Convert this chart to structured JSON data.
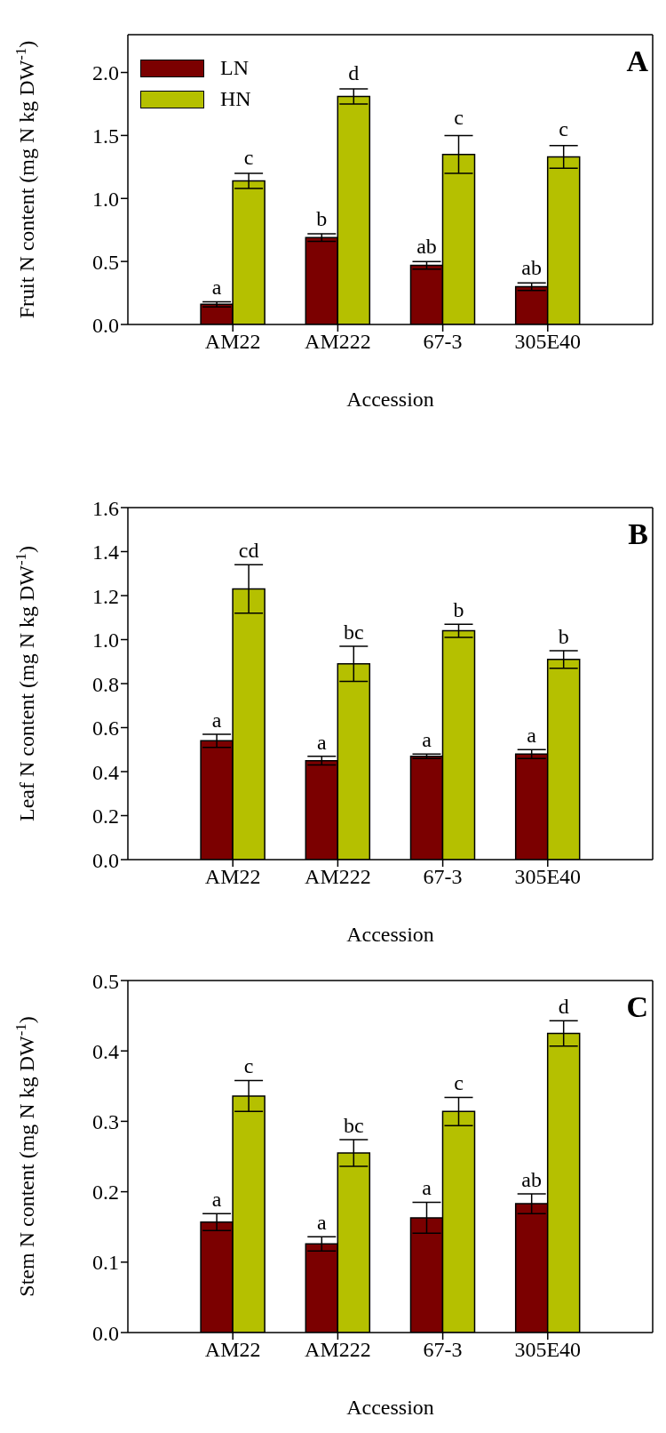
{
  "chart_data": [
    {
      "type": "bar",
      "title": "A",
      "xlabel": "Accession",
      "ylabel": "Fruit N content (mg N kg DW$^{-1}$)",
      "categories": [
        "AM22",
        "AM222",
        "67-3",
        "305E40"
      ],
      "ylim": [
        0,
        2.3
      ],
      "yticks": [
        {
          "value": 0,
          "label": "0.0"
        },
        0.5,
        {
          "value": 1,
          "label": "1.0"
        },
        1.5,
        {
          "value": 2,
          "label": "2.0"
        }
      ],
      "legend": "top left",
      "series": [
        {
          "name": "LN",
          "color": "#7b0000",
          "values": [
            0.16,
            0.69,
            0.47,
            0.3
          ],
          "errors": [
            0.02,
            0.03,
            0.03,
            0.03
          ],
          "value_labels": [
            "a",
            "b",
            "ab",
            "ab"
          ]
        },
        {
          "name": "HN",
          "color": "#b5c000",
          "values": [
            1.14,
            1.81,
            1.35,
            1.33
          ],
          "errors": [
            0.06,
            0.06,
            0.15,
            0.09
          ],
          "value_labels": [
            "c",
            "d",
            "c",
            "c"
          ]
        }
      ]
    },
    {
      "type": "bar",
      "title": "B",
      "xlabel": "Accession",
      "ylabel": "Leaf N content (mg N kg DW$^{-1}$)",
      "categories": [
        "AM22",
        "AM222",
        "67-3",
        "305E40"
      ],
      "ylim": [
        0,
        1.6
      ],
      "yticks": [
        {
          "value": 0,
          "label": "0.0"
        },
        0.2,
        0.4,
        0.6,
        0.8,
        {
          "value": 1,
          "label": "1.0"
        },
        1.2,
        1.4,
        1.6
      ],
      "series": [
        {
          "color": "#7b0000",
          "values": [
            0.54,
            0.45,
            0.47,
            0.48
          ],
          "errors": [
            0.03,
            0.02,
            0.01,
            0.02
          ],
          "value_labels": [
            "a",
            "a",
            "a",
            "a"
          ]
        },
        {
          "color": "#b5c000",
          "values": [
            1.23,
            0.89,
            1.04,
            0.91
          ],
          "errors": [
            0.11,
            0.08,
            0.03,
            0.04
          ],
          "value_labels": [
            "cd",
            "bc",
            "b",
            "b"
          ]
        }
      ]
    },
    {
      "type": "bar",
      "title": "C",
      "xlabel": "Accession",
      "ylabel": "Stem N content (mg N kg DW$^{-1}$)",
      "categories": [
        "AM22",
        "AM222",
        "67-3",
        "305E40"
      ],
      "ylim": [
        0,
        0.5
      ],
      "yticks": [
        {
          "value": 0,
          "label": "0.0"
        },
        0.1,
        0.2,
        0.3,
        0.4,
        0.5
      ],
      "series": [
        {
          "color": "#7b0000",
          "values": [
            0.157,
            0.126,
            0.163,
            0.183
          ],
          "errors": [
            0.012,
            0.01,
            0.022,
            0.014
          ],
          "value_labels": [
            "a",
            "a",
            "a",
            "ab"
          ]
        },
        {
          "color": "#b5c000",
          "values": [
            0.336,
            0.255,
            0.314,
            0.425
          ],
          "errors": [
            0.022,
            0.019,
            0.02,
            0.018
          ],
          "value_labels": [
            "c",
            "bc",
            "c",
            "d"
          ]
        }
      ]
    }
  ]
}
